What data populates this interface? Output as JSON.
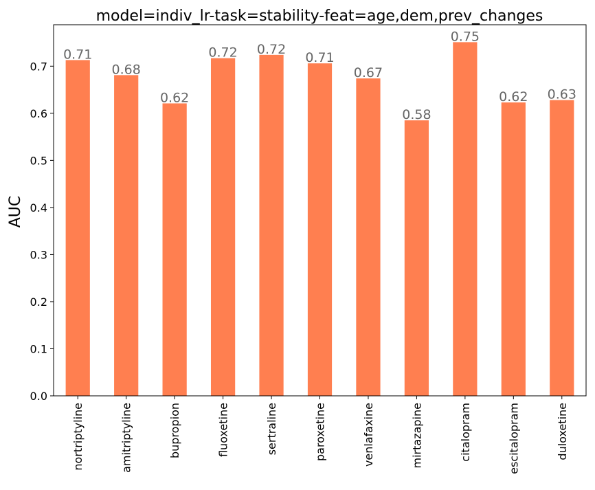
{
  "chart_data": {
    "type": "bar",
    "title": "model=indiv_lr-task=stability-feat=age,dem,prev_changes",
    "xlabel": "",
    "ylabel": "AUC",
    "ylim": [
      0,
      0.788
    ],
    "yticks": [
      0.0,
      0.1,
      0.2,
      0.3,
      0.4,
      0.5,
      0.6,
      0.7
    ],
    "ytick_labels": [
      "0.0",
      "0.1",
      "0.2",
      "0.3",
      "0.4",
      "0.5",
      "0.6",
      "0.7"
    ],
    "categories": [
      "nortriptyline",
      "amitriptyline",
      "bupropion",
      "fluoxetine",
      "sertraline",
      "paroxetine",
      "venlafaxine",
      "mirtazapine",
      "citalopram",
      "escitalopram",
      "duloxetine"
    ],
    "values": [
      0.713,
      0.681,
      0.621,
      0.717,
      0.724,
      0.706,
      0.674,
      0.585,
      0.751,
      0.623,
      0.628
    ],
    "data_labels": [
      "0.71",
      "0.68",
      "0.62",
      "0.72",
      "0.72",
      "0.71",
      "0.67",
      "0.58",
      "0.75",
      "0.62",
      "0.63"
    ],
    "grid": false,
    "colors": {
      "bar": "#ff7f50",
      "data_label": "#666666",
      "axis": "#000000"
    }
  }
}
